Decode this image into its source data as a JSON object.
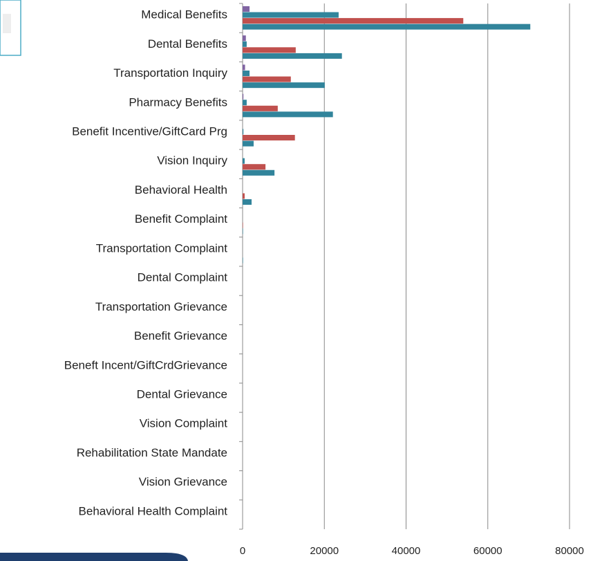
{
  "chart_data": {
    "type": "barh",
    "categories": [
      "Medical Benefits",
      "Dental Benefits",
      "Transportation Inquiry",
      "Pharmacy Benefits",
      "Benefit Incentive/GiftCard Prg",
      "Vision Inquiry",
      "Behavioral Health",
      "Benefit Complaint",
      "Transportation Complaint",
      "Dental Complaint",
      "Transportation Grievance",
      "Benefit Grievance",
      "Beneft Incent/GiftCrdGrievance",
      "Dental Grievance",
      "Vision Complaint",
      "Rehabilitation State Mandate",
      "Vision Grievance",
      "Behavioral Health Complaint"
    ],
    "series": [
      {
        "color": "#8064a2",
        "values": [
          1700,
          800,
          600,
          200,
          0,
          0,
          0,
          0,
          0,
          0,
          0,
          0,
          0,
          0,
          0,
          0,
          0,
          0
        ]
      },
      {
        "color": "#31859c",
        "values": [
          23500,
          1000,
          1700,
          1000,
          200,
          500,
          0,
          0,
          0,
          0,
          0,
          0,
          0,
          0,
          0,
          0,
          0,
          0
        ]
      },
      {
        "color": "#c0504d",
        "values": [
          54000,
          13000,
          11800,
          8600,
          12800,
          5600,
          500,
          100,
          0,
          0,
          0,
          0,
          0,
          0,
          0,
          0,
          0,
          0
        ]
      },
      {
        "color": "#31849b",
        "values": [
          70400,
          24300,
          20100,
          22100,
          2700,
          7800,
          2200,
          100,
          100,
          0,
          0,
          0,
          0,
          0,
          0,
          0,
          0,
          0
        ]
      }
    ],
    "xlim": [
      0,
      80000
    ],
    "xticks": [
      0,
      20000,
      40000,
      60000,
      80000
    ],
    "grid": true
  }
}
